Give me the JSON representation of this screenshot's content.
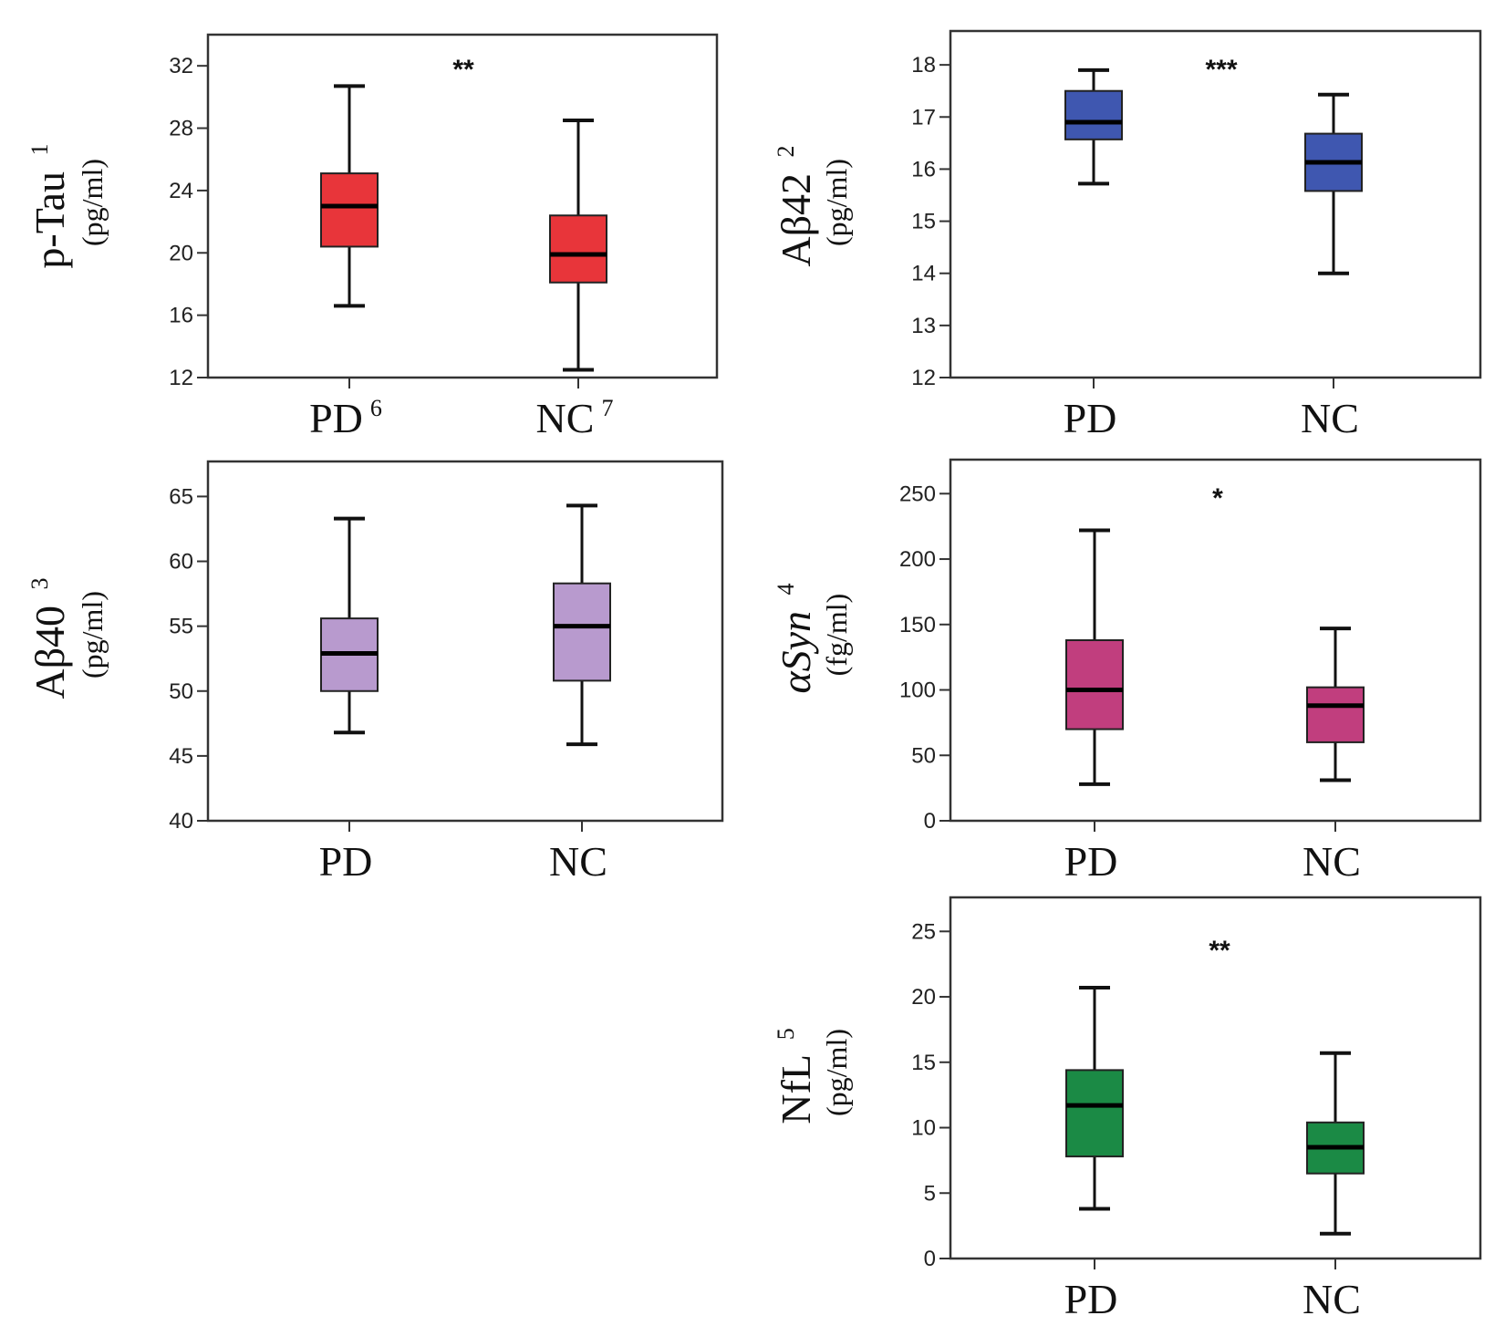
{
  "chart_data": [
    {
      "type": "box",
      "ylabel": "p-Tau",
      "ylabel_sup": "1",
      "yunit": "(pg/ml)",
      "ylim": [
        12,
        34
      ],
      "yticks": [
        12,
        16,
        20,
        24,
        28,
        32
      ],
      "significance": "**",
      "color": "#e8353a",
      "categories": [
        {
          "label": "PD",
          "sup": "6",
          "min": 16.6,
          "q1": 20.4,
          "median": 23.0,
          "q3": 25.1,
          "max": 30.7
        },
        {
          "label": "NC",
          "sup": "7",
          "min": 12.5,
          "q1": 18.1,
          "median": 19.9,
          "q3": 22.4,
          "max": 28.5
        }
      ]
    },
    {
      "type": "box",
      "ylabel": "Aβ42",
      "ylabel_sup": "2",
      "yunit": "(pg/ml)",
      "ylim": [
        12,
        18.65
      ],
      "yticks": [
        12,
        13,
        14,
        15,
        16,
        17,
        18
      ],
      "significance": "***",
      "color": "#3f57b0",
      "categories": [
        {
          "label": "PD",
          "sup": "",
          "min": 15.72,
          "q1": 16.57,
          "median": 16.9,
          "q3": 17.5,
          "max": 17.9
        },
        {
          "label": "NC",
          "sup": "",
          "min": 14.0,
          "q1": 15.58,
          "median": 16.13,
          "q3": 16.68,
          "max": 17.43
        }
      ]
    },
    {
      "type": "box",
      "ylabel": "Aβ40",
      "ylabel_sup": "3",
      "yunit": "(pg/ml)",
      "ylim": [
        40,
        67.7
      ],
      "yticks": [
        40,
        45,
        50,
        55,
        60,
        65
      ],
      "significance": "",
      "color": "#b89ace",
      "categories": [
        {
          "label": "PD",
          "sup": "",
          "min": 46.8,
          "q1": 50.0,
          "median": 52.9,
          "q3": 55.6,
          "max": 63.3
        },
        {
          "label": "NC",
          "sup": "",
          "min": 45.9,
          "q1": 50.8,
          "median": 55.0,
          "q3": 58.3,
          "max": 64.3
        }
      ]
    },
    {
      "type": "box",
      "ylabel": "αSyn",
      "ylabel_sup": "4",
      "yunit": "(fg/ml)",
      "ylim": [
        0,
        276
      ],
      "yticks": [
        0,
        50,
        100,
        150,
        200,
        250
      ],
      "significance": "*",
      "color": "#c13e7e",
      "categories": [
        {
          "label": "PD",
          "sup": "",
          "min": 28,
          "q1": 70,
          "median": 100,
          "q3": 138,
          "max": 222
        },
        {
          "label": "NC",
          "sup": "",
          "min": 31,
          "q1": 60,
          "median": 88,
          "q3": 102,
          "max": 147
        }
      ]
    },
    {
      "type": "box",
      "ylabel": "NfL",
      "ylabel_sup": "5",
      "yunit": "(pg/ml)",
      "ylim": [
        0,
        27.6
      ],
      "yticks": [
        0,
        5,
        10,
        15,
        20,
        25
      ],
      "significance": "**",
      "color": "#1b8a45",
      "categories": [
        {
          "label": "PD",
          "sup": "",
          "min": 3.8,
          "q1": 7.8,
          "median": 11.7,
          "q3": 14.4,
          "max": 20.7
        },
        {
          "label": "NC",
          "sup": "",
          "min": 1.9,
          "q1": 6.5,
          "median": 8.5,
          "q3": 10.4,
          "max": 15.7
        }
      ]
    }
  ]
}
